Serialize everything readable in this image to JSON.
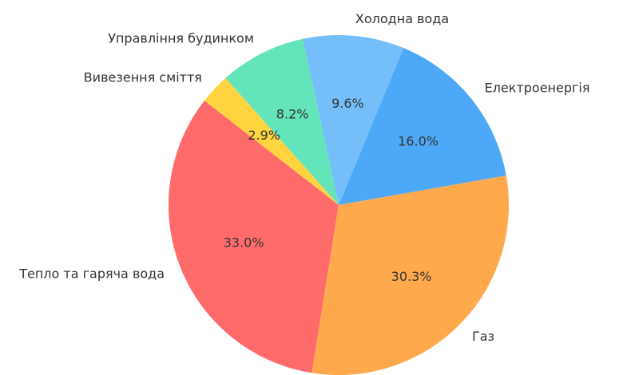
{
  "chart_data": {
    "type": "pie",
    "title": "",
    "start_angle_deg": 10,
    "direction": "counterclockwise",
    "slices": [
      {
        "label": "Електроенергія",
        "value": 16.0,
        "pct_label": "16.0%",
        "color": "#4DA9F7"
      },
      {
        "label": "Холодна вода",
        "value": 9.6,
        "pct_label": "9.6%",
        "color": "#74BFFA"
      },
      {
        "label": "Управління будинком",
        "value": 8.2,
        "pct_label": "8.2%",
        "color": "#63E4BA"
      },
      {
        "label": "Вивезення сміття",
        "value": 2.9,
        "pct_label": "2.9%",
        "color": "#FFD43F"
      },
      {
        "label": "Тепло та гаряча вода",
        "value": 33.0,
        "pct_label": "33.0%",
        "color": "#FF6B6B"
      },
      {
        "label": "Газ",
        "value": 30.3,
        "pct_label": "30.3%",
        "color": "#FFA94D"
      }
    ]
  }
}
